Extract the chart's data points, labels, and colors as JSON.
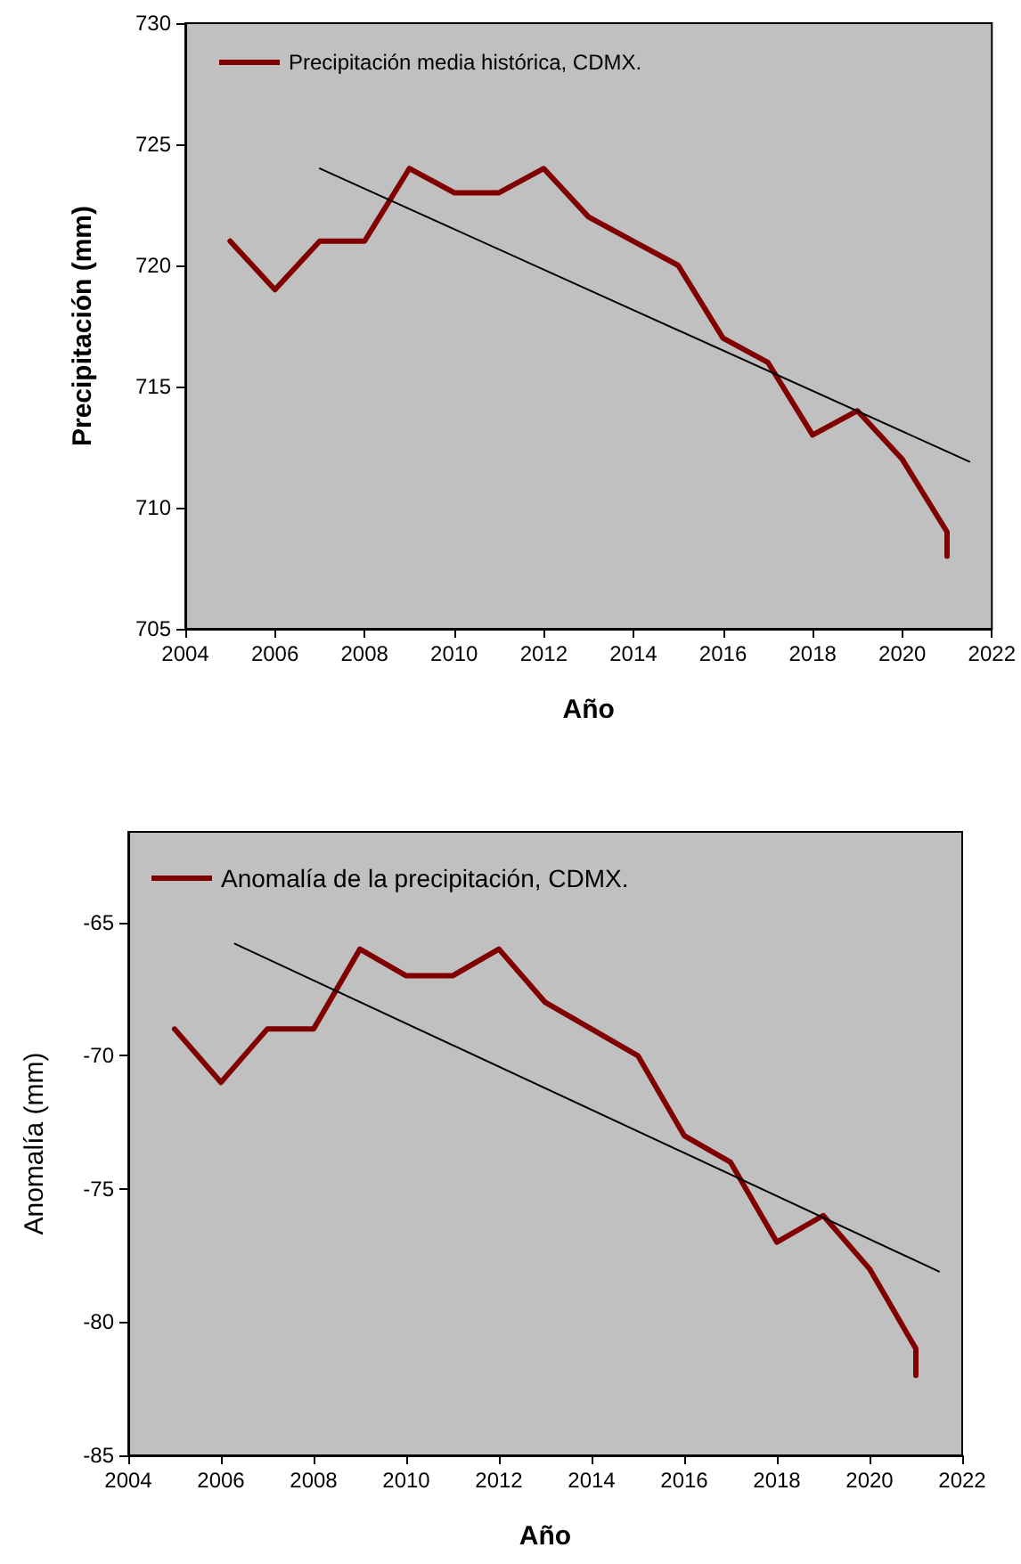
{
  "chart_data": [
    {
      "type": "line",
      "xlabel": "Año",
      "ylabel": "Precipitación (mm)",
      "xlim": [
        2004,
        2022
      ],
      "xticks": [
        2004,
        2006,
        2008,
        2010,
        2012,
        2014,
        2016,
        2018,
        2020,
        2022
      ],
      "ylim": [
        705,
        730
      ],
      "yticks": [
        705,
        710,
        715,
        720,
        725,
        730
      ],
      "grid": false,
      "legend": "top left",
      "marker": "none",
      "series": [
        {
          "name": "Precipitación media histórica, CDMX.",
          "color": "#800000",
          "x": [
            2005,
            2006,
            2007,
            2008,
            2009,
            2010,
            2011,
            2012,
            2013,
            2014,
            2015,
            2016,
            2017,
            2018,
            2019,
            2020,
            2021,
            2021
          ],
          "values": [
            721,
            719,
            721,
            721,
            724,
            723,
            723,
            724,
            722,
            721,
            720,
            717,
            716,
            713,
            714,
            712,
            709,
            708
          ]
        },
        {
          "type": "line",
          "color": "#000000",
          "x": [
            2007,
            2021.5
          ],
          "values": [
            724,
            711.9
          ]
        }
      ]
    },
    {
      "type": "line",
      "xlabel": "Año",
      "ylabel": "Anomalía (mm)",
      "xlim": [
        2004,
        2022
      ],
      "xticks": [
        2004,
        2006,
        2008,
        2010,
        2012,
        2014,
        2016,
        2018,
        2020,
        2022
      ],
      "ylim": [
        -85,
        -61.6
      ],
      "yticks": [
        -85,
        -80,
        -75,
        -70,
        -65
      ],
      "grid": false,
      "legend": "top left",
      "marker": "none",
      "series": [
        {
          "name": "Anomalía de la precipitación, CDMX.",
          "color": "#800000",
          "x": [
            2005,
            2006,
            2007,
            2008,
            2009,
            2010,
            2011,
            2012,
            2013,
            2014,
            2015,
            2016,
            2017,
            2018,
            2019,
            2020,
            2021,
            2021
          ],
          "values": [
            -69,
            -71,
            -69,
            -69,
            -66,
            -67,
            -67,
            -66,
            -68,
            -69,
            -70,
            -73,
            -74,
            -77,
            -76,
            -78,
            -81,
            -82
          ]
        },
        {
          "type": "line",
          "color": "#000000",
          "x": [
            2006.3,
            2021.5
          ],
          "values": [
            -65.8,
            -78.1
          ]
        }
      ]
    }
  ]
}
